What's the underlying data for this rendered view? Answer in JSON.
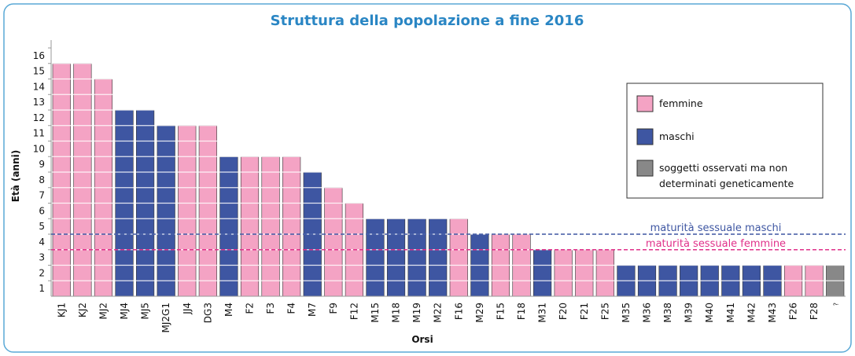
{
  "chart_data": {
    "type": "bar",
    "title": "Struttura della popolazione a fine 2016",
    "x_label": "Orsi",
    "y_label": "Età (anni)",
    "categories": [
      "KJ1",
      "KJ2",
      "MJ2",
      "MJ4",
      "MJ5",
      "MJ2G1",
      "JJ4",
      "DG3",
      "M4",
      "F2",
      "F3",
      "F4",
      "M7",
      "F9",
      "F12",
      "M15",
      "M18",
      "M19",
      "M22",
      "F16",
      "M29",
      "F15",
      "F18",
      "M31",
      "F20",
      "F21",
      "F25",
      "M35",
      "M36",
      "M38",
      "M39",
      "M40",
      "M41",
      "M42",
      "M43",
      "F26",
      "F28",
      "?"
    ],
    "values": [
      15,
      15,
      14,
      12,
      12,
      11,
      11,
      11,
      9,
      9,
      9,
      9,
      8,
      7,
      6,
      5,
      5,
      5,
      5,
      5,
      4,
      4,
      4,
      3,
      3,
      3,
      3,
      2,
      2,
      2,
      2,
      2,
      2,
      2,
      2,
      2,
      2,
      2
    ],
    "colors": [
      "#f4a3c4",
      "#f4a3c4",
      "#f4a3c4",
      "#3e56a2",
      "#3e56a2",
      "#3e56a2",
      "#f4a3c4",
      "#f4a3c4",
      "#3e56a2",
      "#f4a3c4",
      "#f4a3c4",
      "#f4a3c4",
      "#3e56a2",
      "#f4a3c4",
      "#f4a3c4",
      "#3e56a2",
      "#3e56a2",
      "#3e56a2",
      "#3e56a2",
      "#f4a3c4",
      "#3e56a2",
      "#f4a3c4",
      "#f4a3c4",
      "#3e56a2",
      "#f4a3c4",
      "#f4a3c4",
      "#f4a3c4",
      "#3e56a2",
      "#3e56a2",
      "#3e56a2",
      "#3e56a2",
      "#3e56a2",
      "#3e56a2",
      "#3e56a2",
      "#3e56a2",
      "#f4a3c4",
      "#f4a3c4",
      "#888888"
    ],
    "legend": [
      {
        "name": "femmine",
        "color": "#f4a3c4"
      },
      {
        "name": "maschi",
        "color": "#3e56a2"
      },
      {
        "name": "soggetti osservati ma non determinati geneticamente",
        "color": "#888888"
      }
    ],
    "reference_lines": [
      {
        "label": "maturità sessuale maschi",
        "value": 4,
        "color": "#3e56a2"
      },
      {
        "label": "maturità sessuale femmine",
        "value": 3,
        "color": "#e0318a"
      }
    ],
    "ylim": [
      0,
      16
    ],
    "yticks": [
      1,
      2,
      3,
      4,
      5,
      6,
      7,
      8,
      9,
      10,
      11,
      12,
      13,
      14,
      15,
      16
    ],
    "grid": true
  }
}
